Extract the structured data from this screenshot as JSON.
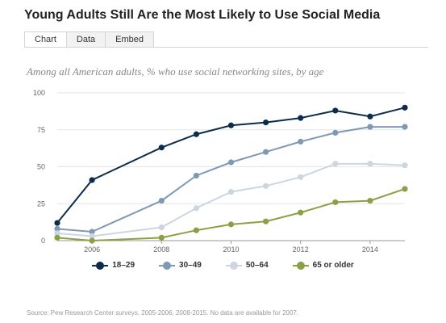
{
  "header": {
    "title": "Young Adults Still Are the Most Likely to Use Social Media",
    "tabs": [
      "Chart",
      "Data",
      "Embed"
    ]
  },
  "subtitle": "Among all American adults, % who use social networking sites, by age",
  "source": "Source: Pew Research Center surveys, 2005-2006, 2008-2015. No data are available for 2007.",
  "chart_data": {
    "type": "line",
    "title": "Young Adults Still Are the Most Likely to Use Social Media",
    "subtitle": "Among all American adults, % who use social networking sites, by age",
    "x": [
      2005,
      2006,
      2008,
      2009,
      2010,
      2011,
      2012,
      2013,
      2014,
      2015
    ],
    "xlim": [
      2005,
      2015
    ],
    "ylim": [
      0,
      100
    ],
    "xticks": [
      2006,
      2008,
      2010,
      2012,
      2014
    ],
    "yticks": [
      0,
      25,
      50,
      75,
      100
    ],
    "grid": "horizontal",
    "legend_position": "bottom",
    "series": [
      {
        "name": "18–29",
        "color": "#0d2c4b",
        "values": [
          12,
          41,
          63,
          72,
          78,
          80,
          83,
          88,
          84,
          90
        ]
      },
      {
        "name": "30–49",
        "color": "#7f99b5",
        "values": [
          8,
          6,
          27,
          44,
          53,
          60,
          67,
          73,
          77,
          77
        ]
      },
      {
        "name": "50–64",
        "color": "#cdd5df",
        "values": [
          5,
          3,
          9,
          22,
          33,
          37,
          43,
          52,
          52,
          51
        ]
      },
      {
        "name": "65 or older",
        "color": "#8aa045",
        "values": [
          2,
          0,
          2,
          7,
          11,
          13,
          19,
          26,
          27,
          35
        ]
      }
    ]
  }
}
